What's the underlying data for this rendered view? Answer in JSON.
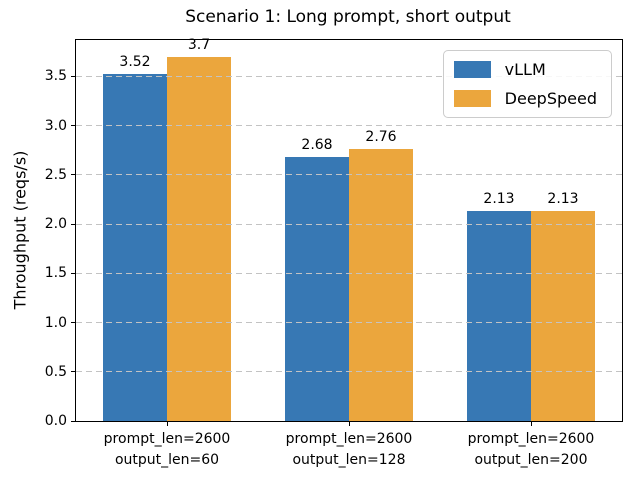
{
  "chart_data": {
    "type": "bar",
    "title": "Scenario 1: Long prompt, short output",
    "ylabel": "Throughput (reqs/s)",
    "xlabel": "",
    "categories": [
      [
        "prompt_len=2600",
        "output_len=60"
      ],
      [
        "prompt_len=2600",
        "output_len=128"
      ],
      [
        "prompt_len=2600",
        "output_len=200"
      ]
    ],
    "series": [
      {
        "name": "vLLM",
        "color": "#3778b4",
        "values": [
          3.52,
          2.68,
          2.13
        ]
      },
      {
        "name": "DeepSpeed",
        "color": "#eba63d",
        "values": [
          3.7,
          2.76,
          2.13
        ]
      }
    ],
    "ylim": [
      0,
      3.87
    ],
    "yticks": [
      0.0,
      0.5,
      1.0,
      1.5,
      2.0,
      2.5,
      3.0,
      3.5
    ],
    "grid": "horizontal-dashed",
    "grid_color": "#c3c3c3",
    "axis_color": "#000000",
    "background": "#ffffff",
    "legend_position": "upper-right"
  }
}
